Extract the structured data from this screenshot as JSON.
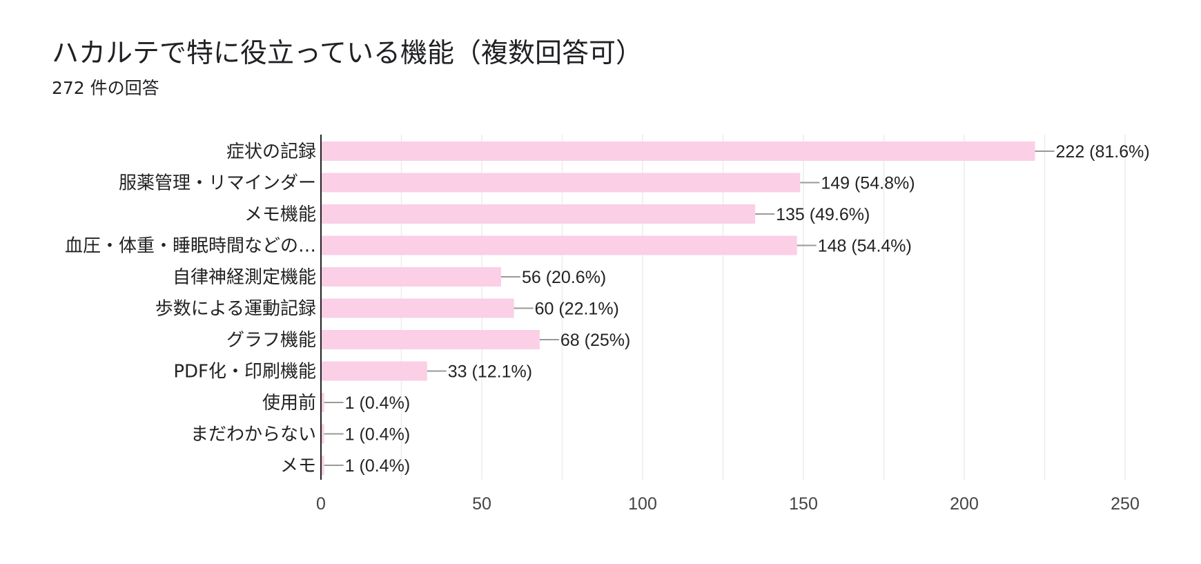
{
  "header": {
    "title": "ハカルテで特に役立っている機能（複数回答可）",
    "subtitle": "272 件の回答"
  },
  "colors": {
    "bar": "#fbcfe5",
    "grid": "#ececec",
    "axis": "#222222",
    "leader": "#999999"
  },
  "chart_data": {
    "type": "bar",
    "orientation": "horizontal",
    "title": "ハカルテで特に役立っている機能（複数回答可）",
    "subtitle": "272 件の回答",
    "categories": [
      "症状の記録",
      "服薬管理・リマインダー",
      "メモ機能",
      "血圧・体重・睡眠時間などの…",
      "自律神経測定機能",
      "歩数による運動記録",
      "グラフ機能",
      "PDF化・印刷機能",
      "使用前",
      "まだわからない",
      "メモ"
    ],
    "values": [
      222,
      149,
      135,
      148,
      56,
      60,
      68,
      33,
      1,
      1,
      1
    ],
    "data_labels": [
      "222 (81.6%)",
      "149 (54.8%)",
      "135 (49.6%)",
      "148 (54.4%)",
      "56 (20.6%)",
      "60 (22.1%)",
      "68 (25%)",
      "33 (12.1%)",
      "1 (0.4%)",
      "1 (0.4%)",
      "1 (0.4%)"
    ],
    "xlim": [
      0,
      250
    ],
    "x_ticks": [
      "0",
      "50",
      "100",
      "150",
      "200",
      "250"
    ],
    "x_tick_values": [
      0,
      50,
      100,
      150,
      200,
      250
    ],
    "minor_grid_step": 25,
    "grid": true,
    "legend": "none"
  }
}
